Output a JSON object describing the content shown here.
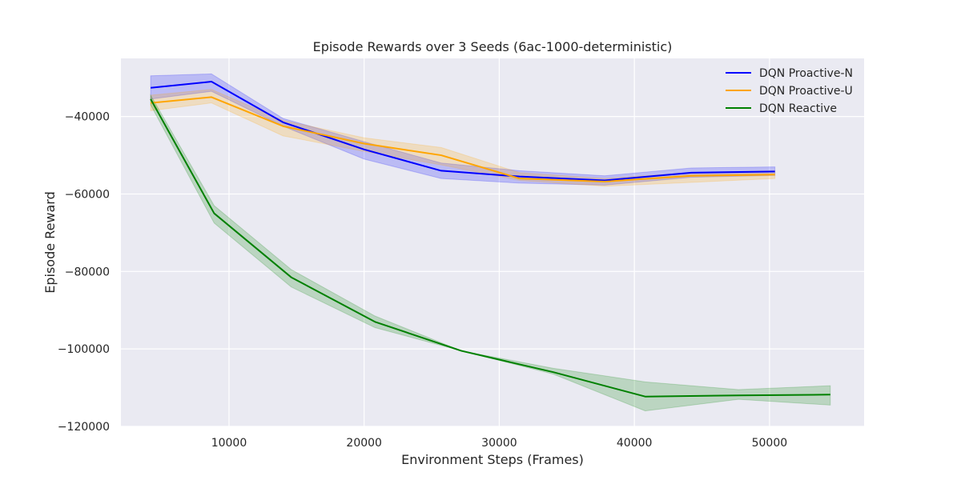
{
  "chart_data": {
    "type": "line",
    "title": "Episode Rewards over 3 Seeds (6ac-1000-deterministic)",
    "xlabel": "Environment Steps (Frames)",
    "ylabel": "Episode Reward",
    "xlim": [
      2000,
      57000
    ],
    "ylim": [
      -120000,
      -25000
    ],
    "xticks": [
      10000,
      20000,
      30000,
      40000,
      50000
    ],
    "yticks": [
      -40000,
      -60000,
      -80000,
      -100000,
      -120000
    ],
    "xtick_labels": [
      "10000",
      "20000",
      "30000",
      "40000",
      "50000"
    ],
    "ytick_labels": [
      "−40000",
      "−60000",
      "−80000",
      "−100000",
      "−120000"
    ],
    "grid": true,
    "legend_position": "top-right",
    "series": [
      {
        "name": "DQN Proactive-N",
        "color": "#0000ff",
        "x": [
          4200,
          8700,
          14000,
          20000,
          25700,
          31500,
          37800,
          44200,
          50400
        ],
        "y": [
          -32600,
          -31000,
          -41500,
          -48500,
          -54000,
          -55500,
          -56500,
          -54500,
          -54200
        ],
        "lower": [
          -35500,
          -33500,
          -42500,
          -51000,
          -56000,
          -57200,
          -57700,
          -55700,
          -55200
        ],
        "upper": [
          -29500,
          -29000,
          -40500,
          -46500,
          -52000,
          -54000,
          -55300,
          -53300,
          -53000
        ]
      },
      {
        "name": "DQN Proactive-U",
        "color": "#ffa500",
        "x": [
          4200,
          8700,
          14000,
          20000,
          25700,
          31500,
          37800,
          44200,
          50400
        ],
        "y": [
          -36500,
          -35000,
          -42500,
          -47000,
          -50000,
          -56000,
          -56800,
          -55300,
          -55000
        ],
        "lower": [
          -38500,
          -36500,
          -45000,
          -49000,
          -52500,
          -56500,
          -58000,
          -57000,
          -56000
        ],
        "upper": [
          -34500,
          -33000,
          -41000,
          -45500,
          -48000,
          -54500,
          -56000,
          -54500,
          -54000
        ]
      },
      {
        "name": "DQN Reactive",
        "color": "#008000",
        "x": [
          4200,
          8900,
          14600,
          20800,
          27200,
          34000,
          40800,
          47700,
          54500
        ],
        "y": [
          -35500,
          -65000,
          -81500,
          -93000,
          -100500,
          -106000,
          -112300,
          -112000,
          -111800
        ],
        "lower": [
          -37000,
          -67500,
          -84000,
          -94500,
          -100500,
          -106500,
          -116000,
          -113000,
          -114500
        ],
        "upper": [
          -34500,
          -63000,
          -79500,
          -91500,
          -100500,
          -105000,
          -108500,
          -110500,
          -109500
        ]
      }
    ]
  }
}
